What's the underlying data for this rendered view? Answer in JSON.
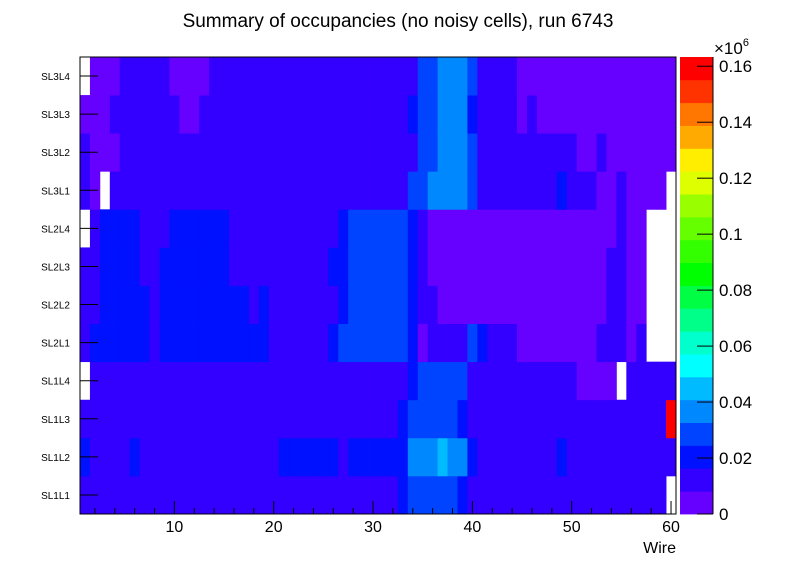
{
  "chart_data": {
    "type": "heatmap",
    "title": "Summary of occupancies (no noisy cells), run 6743",
    "xlabel": "Wire",
    "ylabel": "",
    "xlim": [
      0.5,
      60.5
    ],
    "x_ticks": [
      "10",
      "20",
      "30",
      "40",
      "50",
      "60"
    ],
    "y_categories": [
      "SL1L1",
      "SL1L2",
      "SL1L3",
      "SL1L4",
      "SL2L1",
      "SL2L2",
      "SL2L3",
      "SL2L4",
      "SL3L1",
      "SL3L2",
      "SL3L3",
      "SL3L4"
    ],
    "z_range": [
      0,
      163300
    ],
    "z_multiplier_label": "×10",
    "z_multiplier_exp": "6",
    "z_ticks": [
      "0",
      "0.02",
      "0.04",
      "0.06",
      "0.08",
      "0.1",
      "0.12",
      "0.14",
      "0.16"
    ],
    "z_tick_values": [
      0,
      20000,
      40000,
      60000,
      80000,
      100000,
      120000,
      140000,
      160000
    ],
    "palette": [
      "#6600ff",
      "#3300ff",
      "#0011ff",
      "#0044ff",
      "#0088ff",
      "#00bbff",
      "#00ffff",
      "#00ffcc",
      "#00ff88",
      "#00ff44",
      "#00ff00",
      "#33ff00",
      "#66ff00",
      "#99ff00",
      "#ddff00",
      "#ffee00",
      "#ffaa00",
      "#ff7700",
      "#ff3300",
      "#ff0000"
    ],
    "rows_note_format": "run-length [value, count] per layer, wires 1..60, null = empty",
    "rows": {
      "SL3L4": [
        [
          null,
          1
        ],
        [
          4000,
          3
        ],
        [
          12000,
          5
        ],
        [
          4000,
          4
        ],
        [
          12000,
          21
        ],
        [
          29000,
          2
        ],
        [
          37000,
          3
        ],
        [
          29000,
          1
        ],
        [
          12000,
          4
        ],
        [
          4000,
          16
        ]
      ],
      "SL3L3": [
        [
          4000,
          3
        ],
        [
          12000,
          7
        ],
        [
          4000,
          2
        ],
        [
          12000,
          21
        ],
        [
          20000,
          1
        ],
        [
          29000,
          2
        ],
        [
          37000,
          3
        ],
        [
          20000,
          1
        ],
        [
          12000,
          4
        ],
        [
          4000,
          1
        ],
        [
          12000,
          1
        ],
        [
          4000,
          14
        ]
      ],
      "SL3L2": [
        [
          12000,
          1
        ],
        [
          4000,
          3
        ],
        [
          12000,
          30
        ],
        [
          29000,
          2
        ],
        [
          37000,
          3
        ],
        [
          29000,
          1
        ],
        [
          12000,
          10
        ],
        [
          4000,
          2
        ],
        [
          12000,
          1
        ],
        [
          4000,
          7
        ]
      ],
      "SL3L1": [
        [
          12000,
          1
        ],
        [
          4000,
          1
        ],
        [
          null,
          1
        ],
        [
          12000,
          30
        ],
        [
          29000,
          2
        ],
        [
          37000,
          4
        ],
        [
          29000,
          1
        ],
        [
          12000,
          8
        ],
        [
          20000,
          1
        ],
        [
          12000,
          3
        ],
        [
          4000,
          2
        ],
        [
          12000,
          1
        ],
        [
          4000,
          4
        ],
        [
          null,
          1
        ]
      ],
      "SL2L4": [
        [
          null,
          1
        ],
        [
          12000,
          1
        ],
        [
          20000,
          4
        ],
        [
          12000,
          3
        ],
        [
          20000,
          6
        ],
        [
          12000,
          11
        ],
        [
          20000,
          1
        ],
        [
          29000,
          6
        ],
        [
          20000,
          1
        ],
        [
          12000,
          1
        ],
        [
          4000,
          19
        ],
        [
          12000,
          1
        ],
        [
          4000,
          2
        ],
        [
          null,
          3
        ]
      ],
      "SL2L3": [
        [
          12000,
          2
        ],
        [
          20000,
          4
        ],
        [
          12000,
          2
        ],
        [
          20000,
          7
        ],
        [
          12000,
          10
        ],
        [
          20000,
          2
        ],
        [
          29000,
          6
        ],
        [
          20000,
          1
        ],
        [
          12000,
          1
        ],
        [
          4000,
          18
        ],
        [
          12000,
          2
        ],
        [
          4000,
          2
        ],
        [
          null,
          3
        ]
      ],
      "SL2L2": [
        [
          12000,
          2
        ],
        [
          20000,
          5
        ],
        [
          12000,
          1
        ],
        [
          20000,
          9
        ],
        [
          12000,
          1
        ],
        [
          20000,
          1
        ],
        [
          12000,
          7
        ],
        [
          20000,
          1
        ],
        [
          29000,
          6
        ],
        [
          20000,
          1
        ],
        [
          12000,
          2
        ],
        [
          4000,
          17
        ],
        [
          12000,
          2
        ],
        [
          4000,
          2
        ],
        [
          null,
          3
        ]
      ],
      "SL2L1": [
        [
          12000,
          1
        ],
        [
          20000,
          6
        ],
        [
          12000,
          1
        ],
        [
          20000,
          11
        ],
        [
          12000,
          6
        ],
        [
          20000,
          1
        ],
        [
          29000,
          7
        ],
        [
          20000,
          1
        ],
        [
          4000,
          1
        ],
        [
          12000,
          4
        ],
        [
          29000,
          1
        ],
        [
          20000,
          1
        ],
        [
          12000,
          3
        ],
        [
          4000,
          8
        ],
        [
          12000,
          3
        ],
        [
          4000,
          1
        ],
        [
          12000,
          1
        ],
        [
          null,
          3
        ]
      ],
      "SL1L4": [
        [
          null,
          1
        ],
        [
          12000,
          32
        ],
        [
          20000,
          1
        ],
        [
          29000,
          5
        ],
        [
          12000,
          11
        ],
        [
          4000,
          4
        ],
        [
          null,
          1
        ],
        [
          12000,
          5
        ]
      ],
      "SL1L3": [
        [
          12000,
          32
        ],
        [
          20000,
          1
        ],
        [
          29000,
          5
        ],
        [
          20000,
          1
        ],
        [
          12000,
          20
        ],
        [
          160000,
          1
        ]
      ],
      "SL1L2": [
        [
          20000,
          1
        ],
        [
          12000,
          4
        ],
        [
          20000,
          1
        ],
        [
          12000,
          14
        ],
        [
          20000,
          6
        ],
        [
          12000,
          1
        ],
        [
          20000,
          6
        ],
        [
          37000,
          3
        ],
        [
          45000,
          1
        ],
        [
          37000,
          2
        ],
        [
          20000,
          1
        ],
        [
          12000,
          8
        ],
        [
          20000,
          1
        ],
        [
          12000,
          11
        ]
      ],
      "SL1L1": [
        [
          12000,
          32
        ],
        [
          20000,
          1
        ],
        [
          29000,
          5
        ],
        [
          20000,
          1
        ],
        [
          12000,
          20
        ],
        [
          null,
          1
        ]
      ]
    }
  }
}
